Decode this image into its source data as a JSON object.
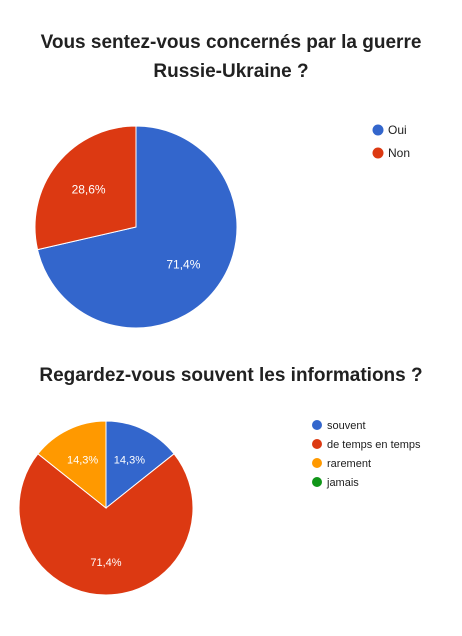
{
  "chart_data": [
    {
      "type": "pie",
      "title": "Vous sentez-vous concernés par la guerre Russie-Ukraine ?",
      "legend_position": "right",
      "slices": [
        {
          "label": "Oui",
          "value": 71.4,
          "value_label": "71,4%",
          "color": "#3366cc"
        },
        {
          "label": "Non",
          "value": 28.6,
          "value_label": "28,6%",
          "color": "#dc3912"
        }
      ]
    },
    {
      "type": "pie",
      "title": "Regardez-vous souvent les informations ?",
      "legend_position": "right",
      "slices": [
        {
          "label": "souvent",
          "value": 14.3,
          "value_label": "14,3%",
          "color": "#3366cc"
        },
        {
          "label": "de temps en temps",
          "value": 71.4,
          "value_label": "71,4%",
          "color": "#dc3912"
        },
        {
          "label": "rarement",
          "value": 14.3,
          "value_label": "14,3%",
          "color": "#ff9900"
        },
        {
          "label": "jamais",
          "value": 0,
          "value_label": "",
          "color": "#109618"
        }
      ]
    }
  ]
}
